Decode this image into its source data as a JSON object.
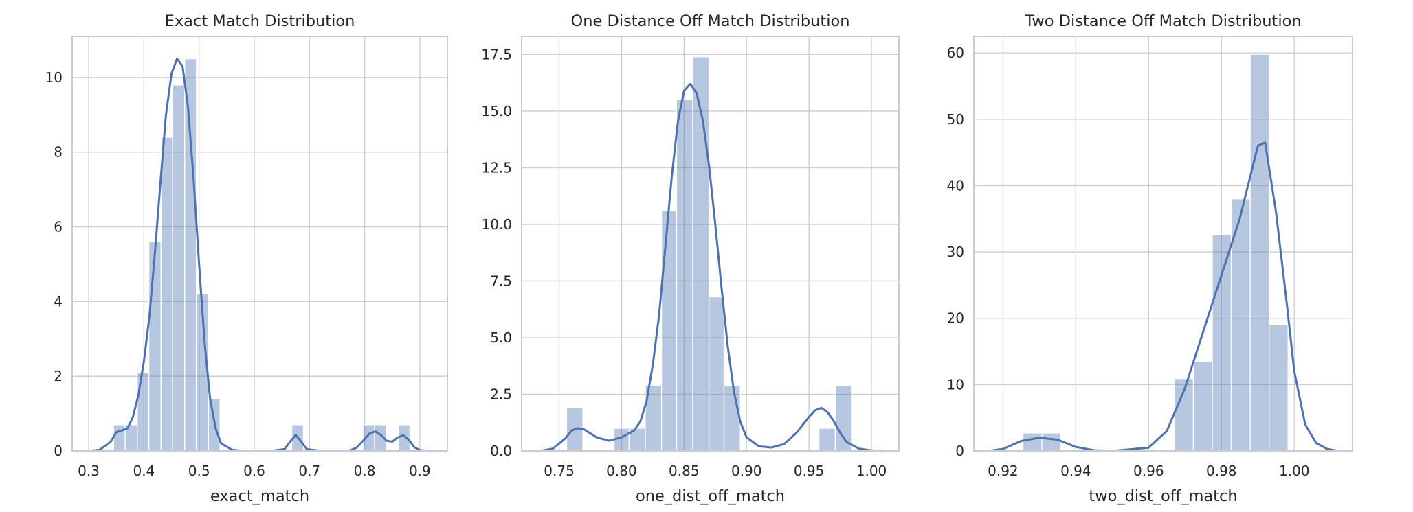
{
  "colors": {
    "bar": "#4c72b0",
    "bar_opacity": 0.4,
    "line": "#4c72b0"
  },
  "chart_data": [
    {
      "type": "histogram",
      "title": "Exact Match Distribution",
      "xlabel": "exact_match",
      "ylabel": "",
      "xlim": [
        0.27,
        0.95
      ],
      "ylim": [
        0,
        11.1
      ],
      "xticks": [
        0.3,
        0.4,
        0.5,
        0.6,
        0.7,
        0.8,
        0.9
      ],
      "xtick_labels": [
        "0.3",
        "0.4",
        "0.5",
        "0.6",
        "0.7",
        "0.8",
        "0.9"
      ],
      "yticks": [
        0,
        2,
        4,
        6,
        8,
        10
      ],
      "ytick_labels": [
        "0",
        "2",
        "4",
        "6",
        "8",
        "10"
      ],
      "grid": true,
      "bins": [
        [
          0.345,
          0.366,
          0.7
        ],
        [
          0.366,
          0.388,
          0.7
        ],
        [
          0.388,
          0.409,
          2.1
        ],
        [
          0.409,
          0.431,
          5.6
        ],
        [
          0.431,
          0.452,
          8.4
        ],
        [
          0.452,
          0.474,
          9.8
        ],
        [
          0.474,
          0.495,
          10.5
        ],
        [
          0.495,
          0.517,
          4.2
        ],
        [
          0.517,
          0.538,
          1.4
        ],
        [
          0.668,
          0.689,
          0.7
        ],
        [
          0.797,
          0.818,
          0.7
        ],
        [
          0.818,
          0.84,
          0.7
        ],
        [
          0.861,
          0.882,
          0.7
        ]
      ],
      "kde": [
        [
          0.3,
          0.0
        ],
        [
          0.32,
          0.03
        ],
        [
          0.34,
          0.25
        ],
        [
          0.35,
          0.5
        ],
        [
          0.36,
          0.55
        ],
        [
          0.37,
          0.6
        ],
        [
          0.38,
          0.9
        ],
        [
          0.39,
          1.5
        ],
        [
          0.4,
          2.4
        ],
        [
          0.41,
          3.6
        ],
        [
          0.42,
          5.3
        ],
        [
          0.43,
          7.2
        ],
        [
          0.44,
          9.0
        ],
        [
          0.45,
          10.1
        ],
        [
          0.46,
          10.5
        ],
        [
          0.47,
          10.3
        ],
        [
          0.48,
          9.2
        ],
        [
          0.49,
          7.3
        ],
        [
          0.5,
          5.0
        ],
        [
          0.51,
          2.9
        ],
        [
          0.52,
          1.4
        ],
        [
          0.53,
          0.6
        ],
        [
          0.54,
          0.2
        ],
        [
          0.56,
          0.03
        ],
        [
          0.58,
          0.0
        ],
        [
          0.63,
          0.0
        ],
        [
          0.655,
          0.05
        ],
        [
          0.665,
          0.25
        ],
        [
          0.675,
          0.43
        ],
        [
          0.685,
          0.25
        ],
        [
          0.695,
          0.05
        ],
        [
          0.72,
          0.0
        ],
        [
          0.77,
          0.0
        ],
        [
          0.785,
          0.08
        ],
        [
          0.8,
          0.32
        ],
        [
          0.81,
          0.48
        ],
        [
          0.82,
          0.52
        ],
        [
          0.83,
          0.42
        ],
        [
          0.84,
          0.27
        ],
        [
          0.85,
          0.25
        ],
        [
          0.86,
          0.36
        ],
        [
          0.87,
          0.42
        ],
        [
          0.88,
          0.3
        ],
        [
          0.89,
          0.1
        ],
        [
          0.9,
          0.02
        ],
        [
          0.92,
          0.0
        ]
      ]
    },
    {
      "type": "histogram",
      "title": "One Distance Off Match Distribution",
      "xlabel": "one_dist_off_match",
      "ylabel": "",
      "xlim": [
        0.72,
        1.022
      ],
      "ylim": [
        0,
        18.3
      ],
      "xticks": [
        0.75,
        0.8,
        0.85,
        0.9,
        0.95,
        1.0
      ],
      "xtick_labels": [
        "0.75",
        "0.80",
        "0.85",
        "0.90",
        "0.95",
        "1.00"
      ],
      "yticks": [
        0,
        2.5,
        5,
        7.5,
        10,
        12.5,
        15,
        17.5
      ],
      "ytick_labels": [
        "0.0",
        "2.5",
        "5.0",
        "7.5",
        "10.0",
        "12.5",
        "15.0",
        "17.5"
      ],
      "grid": true,
      "bins": [
        [
          0.756,
          0.769,
          1.9
        ],
        [
          0.794,
          0.806,
          1.0
        ],
        [
          0.806,
          0.819,
          1.0
        ],
        [
          0.819,
          0.832,
          2.9
        ],
        [
          0.832,
          0.844,
          10.6
        ],
        [
          0.844,
          0.857,
          15.5
        ],
        [
          0.857,
          0.87,
          17.4
        ],
        [
          0.87,
          0.882,
          6.8
        ],
        [
          0.882,
          0.895,
          2.9
        ],
        [
          0.958,
          0.971,
          1.0
        ],
        [
          0.971,
          0.984,
          2.9
        ]
      ],
      "kde": [
        [
          0.735,
          0.0
        ],
        [
          0.745,
          0.1
        ],
        [
          0.755,
          0.55
        ],
        [
          0.76,
          0.9
        ],
        [
          0.765,
          1.0
        ],
        [
          0.77,
          0.95
        ],
        [
          0.78,
          0.6
        ],
        [
          0.79,
          0.45
        ],
        [
          0.8,
          0.6
        ],
        [
          0.81,
          0.9
        ],
        [
          0.815,
          1.3
        ],
        [
          0.82,
          2.2
        ],
        [
          0.825,
          3.8
        ],
        [
          0.83,
          6.0
        ],
        [
          0.835,
          9.0
        ],
        [
          0.84,
          12.0
        ],
        [
          0.845,
          14.5
        ],
        [
          0.85,
          15.9
        ],
        [
          0.855,
          16.2
        ],
        [
          0.86,
          15.8
        ],
        [
          0.865,
          14.6
        ],
        [
          0.87,
          12.6
        ],
        [
          0.875,
          10.0
        ],
        [
          0.88,
          7.2
        ],
        [
          0.885,
          4.6
        ],
        [
          0.89,
          2.6
        ],
        [
          0.895,
          1.3
        ],
        [
          0.9,
          0.6
        ],
        [
          0.91,
          0.2
        ],
        [
          0.92,
          0.15
        ],
        [
          0.93,
          0.3
        ],
        [
          0.94,
          0.8
        ],
        [
          0.95,
          1.5
        ],
        [
          0.955,
          1.8
        ],
        [
          0.96,
          1.9
        ],
        [
          0.965,
          1.7
        ],
        [
          0.97,
          1.3
        ],
        [
          0.975,
          0.8
        ],
        [
          0.98,
          0.4
        ],
        [
          0.99,
          0.1
        ],
        [
          1.0,
          0.02
        ],
        [
          1.01,
          0.0
        ]
      ]
    },
    {
      "type": "histogram",
      "title": "Two Distance Off Match Distribution",
      "xlabel": "two_dist_off_match",
      "ylabel": "",
      "xlim": [
        0.912,
        1.016
      ],
      "ylim": [
        0,
        62.5
      ],
      "xticks": [
        0.92,
        0.94,
        0.96,
        0.98,
        1.0
      ],
      "xtick_labels": [
        "0.92",
        "0.94",
        "0.96",
        "0.98",
        "1.00"
      ],
      "yticks": [
        0,
        10,
        20,
        30,
        40,
        50,
        60
      ],
      "ytick_labels": [
        "0",
        "10",
        "20",
        "30",
        "40",
        "50",
        "60"
      ],
      "grid": true,
      "bins": [
        [
          0.9255,
          0.9307,
          2.7
        ],
        [
          0.9307,
          0.9359,
          2.7
        ],
        [
          0.9671,
          0.9723,
          10.9
        ],
        [
          0.9723,
          0.9775,
          13.5
        ],
        [
          0.9775,
          0.9827,
          32.6
        ],
        [
          0.9827,
          0.9879,
          38.0
        ],
        [
          0.9879,
          0.9931,
          59.8
        ],
        [
          0.9931,
          0.9983,
          19.0
        ]
      ],
      "kde": [
        [
          0.916,
          0.0
        ],
        [
          0.92,
          0.3
        ],
        [
          0.925,
          1.5
        ],
        [
          0.93,
          2.0
        ],
        [
          0.935,
          1.7
        ],
        [
          0.94,
          0.6
        ],
        [
          0.945,
          0.1
        ],
        [
          0.95,
          0.0
        ],
        [
          0.96,
          0.5
        ],
        [
          0.965,
          3.0
        ],
        [
          0.97,
          9.5
        ],
        [
          0.975,
          18.0
        ],
        [
          0.98,
          26.5
        ],
        [
          0.985,
          35.0
        ],
        [
          0.99,
          46.0
        ],
        [
          0.992,
          46.5
        ],
        [
          0.995,
          36.0
        ],
        [
          0.998,
          22.0
        ],
        [
          1.0,
          12.0
        ],
        [
          1.003,
          4.0
        ],
        [
          1.006,
          1.2
        ],
        [
          1.009,
          0.3
        ],
        [
          1.012,
          0.0
        ]
      ]
    }
  ]
}
